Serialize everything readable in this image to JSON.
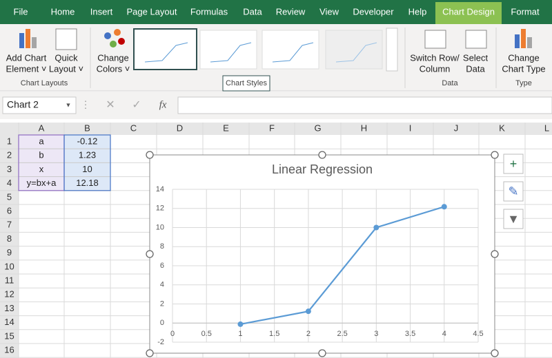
{
  "ribbon": {
    "tabs": [
      "File",
      "Home",
      "Insert",
      "Page Layout",
      "Formulas",
      "Data",
      "Review",
      "View",
      "Developer",
      "Help",
      "Chart Design",
      "Format"
    ],
    "groups": [
      {
        "label": "Chart Layouts",
        "buttons": [
          [
            "Add Chart",
            "Element ˅"
          ],
          [
            "Quick",
            "Layout ˅"
          ]
        ]
      },
      {
        "label": "Chart Styles",
        "buttons": [
          [
            "Change",
            "Colors ˅"
          ]
        ]
      },
      {
        "label": "Data",
        "buttons": [
          [
            "Switch Row/",
            "Column"
          ],
          [
            "Select",
            "Data"
          ]
        ]
      },
      {
        "label": "Type",
        "buttons": [
          [
            "Change",
            "Chart Type"
          ]
        ]
      }
    ]
  },
  "formula_bar": {
    "name_box": "Chart 2",
    "function_icon": "fx"
  },
  "sheet": {
    "columns": [
      "A",
      "B",
      "C",
      "D",
      "E",
      "F",
      "G",
      "H",
      "I",
      "J",
      "K",
      "L"
    ],
    "rows": [
      1,
      2,
      3,
      4,
      5,
      6,
      7,
      8,
      9,
      10,
      11,
      12,
      13,
      14,
      15,
      16
    ],
    "cells": [
      [
        "a",
        "-0.12"
      ],
      [
        "b",
        "1.23"
      ],
      [
        "x",
        "10"
      ],
      [
        "y=bx+a",
        "12.18"
      ]
    ]
  },
  "chart_data": {
    "type": "line",
    "title": "Linear Regression",
    "x": [
      1,
      2,
      3,
      4
    ],
    "values": [
      -0.12,
      1.23,
      10,
      12.18
    ],
    "color": "#5b9bd5",
    "xlim": [
      0,
      4.5
    ],
    "xticks": [
      0,
      0.5,
      1,
      1.5,
      2,
      2.5,
      3,
      3.5,
      4,
      4.5
    ],
    "ylim": [
      -2,
      14
    ],
    "yticks": [
      -2,
      0,
      2,
      4,
      6,
      8,
      10,
      12,
      14
    ],
    "grid": true
  }
}
